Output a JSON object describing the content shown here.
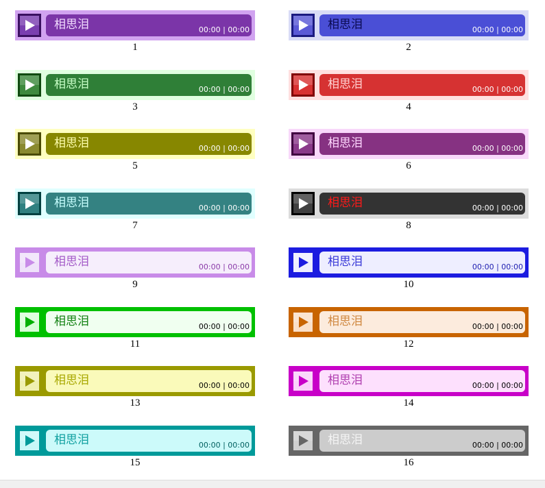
{
  "players": [
    {
      "label": "1",
      "title": "相思泪",
      "time": "00:00 | 00:00",
      "outer": "#d1a3f0",
      "btn_bg": "#7a3fb0",
      "btn_border": "#3a1060",
      "btn_tri": "#ffffff",
      "track_bg": "#7b35a8",
      "title_color": "#f2dcff",
      "time_color": "#ffffff"
    },
    {
      "label": "2",
      "title": "相思泪",
      "time": "00:00 | 00:00",
      "outer": "#d9dcf6",
      "btn_bg": "#5a5ad6",
      "btn_border": "#1a1a80",
      "btn_tri": "#ffffff",
      "track_bg": "#4a4fd6",
      "title_color": "#0a0a50",
      "time_color": "#ffffff"
    },
    {
      "label": "3",
      "title": "相思泪",
      "time": "00:00 | 00:00",
      "outer": "#e0ffe0",
      "btn_bg": "#3e8a3e",
      "btn_border": "#104a10",
      "btn_tri": "#ffffff",
      "track_bg": "#2f7f37",
      "title_color": "#c8ffc8",
      "time_color": "#ffffff"
    },
    {
      "label": "4",
      "title": "相思泪",
      "time": "00:00 | 00:00",
      "outer": "#ffe0e0",
      "btn_bg": "#d83232",
      "btn_border": "#800000",
      "btn_tri": "#ffffff",
      "track_bg": "#d63232",
      "title_color": "#ffd0d0",
      "time_color": "#ffffff"
    },
    {
      "label": "5",
      "title": "相思泪",
      "time": "00:00 | 00:00",
      "outer": "#ffffc0",
      "btn_bg": "#8a8a30",
      "btn_border": "#4a4a00",
      "btn_tri": "#ffffff",
      "track_bg": "#878700",
      "title_color": "#ffffb0",
      "time_color": "#ffffff"
    },
    {
      "label": "6",
      "title": "相思泪",
      "time": "00:00 | 00:00",
      "outer": "#f8d8fa",
      "btn_bg": "#8a3a8a",
      "btn_border": "#400040",
      "btn_tri": "#ffffff",
      "track_bg": "#863282",
      "title_color": "#ffd8ff",
      "time_color": "#ffffff"
    },
    {
      "label": "7",
      "title": "相思泪",
      "time": "00:00 | 00:00",
      "outer": "#e0ffff",
      "btn_bg": "#308080",
      "btn_border": "#004040",
      "btn_tri": "#ffffff",
      "track_bg": "#348282",
      "title_color": "#c8ffff",
      "time_color": "#ffffff"
    },
    {
      "label": "8",
      "title": "相思泪",
      "time": "00:00 | 00:00",
      "outer": "#dcdcdc",
      "btn_bg": "#404040",
      "btn_border": "#000000",
      "btn_tri": "#ffffff",
      "track_bg": "#333333",
      "title_color": "#ff1a1a",
      "time_color": "#ffffff"
    },
    {
      "label": "9",
      "title": "相思泪",
      "time": "00:00 | 00:00",
      "outer": "#c88be8",
      "btn_bg": "#efe2fa",
      "btn_border": "#c88be8",
      "btn_tri": "#c88be8",
      "track_bg": "#f6eefc",
      "title_color": "#a45bc8",
      "time_color": "#8a3aa8"
    },
    {
      "label": "10",
      "title": "相思泪",
      "time": "00:00 | 00:00",
      "outer": "#1c1ce0",
      "btn_bg": "#eeeeff",
      "btn_border": "#1c1ce0",
      "btn_tri": "#1c1ce0",
      "track_bg": "#eeeeff",
      "title_color": "#3a3ad8",
      "time_color": "#1c1cb0"
    },
    {
      "label": "11",
      "title": "相思泪",
      "time": "00:00 | 00:00",
      "outer": "#00c000",
      "btn_bg": "#d8ffd8",
      "btn_border": "#00c000",
      "btn_tri": "#00b000",
      "track_bg": "#f0fff0",
      "title_color": "#108010",
      "time_color": "#000000"
    },
    {
      "label": "12",
      "title": "相思泪",
      "time": "00:00 | 00:00",
      "outer": "#c86400",
      "btn_bg": "#fbe0c8",
      "btn_border": "#c86400",
      "btn_tri": "#c86400",
      "track_bg": "#fcebdd",
      "title_color": "#d08840",
      "time_color": "#000000"
    },
    {
      "label": "13",
      "title": "相思泪",
      "time": "00:00 | 00:00",
      "outer": "#9a9a00",
      "btn_bg": "#f0f0b0",
      "btn_border": "#9a9a00",
      "btn_tri": "#9a9a00",
      "track_bg": "#fafaba",
      "title_color": "#a8a800",
      "time_color": "#000000"
    },
    {
      "label": "14",
      "title": "相思泪",
      "time": "00:00 | 00:00",
      "outer": "#c800c8",
      "btn_bg": "#fbd0fb",
      "btn_border": "#c800c8",
      "btn_tri": "#c800c8",
      "track_bg": "#fde0fd",
      "title_color": "#b040b0",
      "time_color": "#000000"
    },
    {
      "label": "15",
      "title": "相思泪",
      "time": "00:00 | 00:00",
      "outer": "#009a9a",
      "btn_bg": "#c8f8f8",
      "btn_border": "#009a9a",
      "btn_tri": "#009a9a",
      "track_bg": "#ccfafa",
      "title_color": "#10a0a0",
      "time_color": "#006060"
    },
    {
      "label": "16",
      "title": "相思泪",
      "time": "00:00 | 00:00",
      "outer": "#666666",
      "btn_bg": "#d0d0d0",
      "btn_border": "#666666",
      "btn_tri": "#666666",
      "track_bg": "#cccccc",
      "title_color": "#f4f4f4",
      "time_color": "#000000"
    }
  ]
}
